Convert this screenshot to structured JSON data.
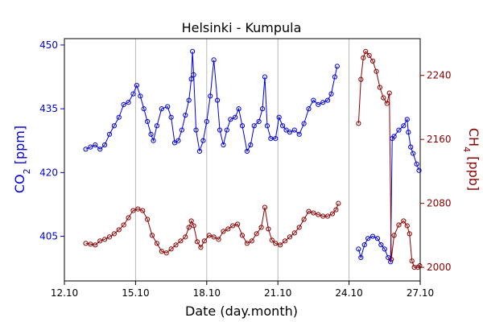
{
  "chart_data": {
    "type": "line",
    "title": "Helsinki - Kumpula",
    "xlabel": "Date (day.month)",
    "xlim": [
      12.1,
      27.1
    ],
    "x_ticks": [
      12.1,
      15.1,
      18.1,
      21.1,
      24.1,
      27.1
    ],
    "x_tick_labels": [
      "12.10",
      "15.10",
      "18.10",
      "21.10",
      "24.10",
      "27.10"
    ],
    "vlines": [
      15.1,
      18.1,
      21.1,
      24.1
    ],
    "axes": {
      "left": {
        "ylabel_main": "CO",
        "ylabel_sub": "2",
        "ylabel_unit": " [ppm]",
        "color": "#0000dd",
        "ylim": [
          394.5,
          451.5
        ],
        "ticks": [
          405,
          420,
          435,
          450
        ],
        "tick_labels": [
          "405",
          "420",
          "435",
          "450"
        ]
      },
      "right": {
        "ylabel_main": "CH",
        "ylabel_sub": "4",
        "ylabel_unit": " [ppb]",
        "color": "#8b0000",
        "ylim": [
          1983,
          2286
        ],
        "ticks": [
          2000,
          2080,
          2160,
          2240
        ],
        "tick_labels": [
          "2000",
          "2080",
          "2160",
          "2240"
        ]
      }
    },
    "series": [
      {
        "name": "CO2",
        "axis": "left",
        "color": "#0000dd",
        "segments": [
          [
            [
              13.0,
              425.5
            ],
            [
              13.2,
              426.0
            ],
            [
              13.4,
              426.5
            ],
            [
              13.6,
              425.5
            ],
            [
              13.8,
              426.5
            ],
            [
              14.0,
              429.0
            ],
            [
              14.2,
              431.0
            ],
            [
              14.4,
              433.0
            ],
            [
              14.6,
              436.0
            ],
            [
              14.8,
              436.5
            ],
            [
              15.0,
              438.5
            ],
            [
              15.15,
              440.5
            ],
            [
              15.3,
              438.0
            ],
            [
              15.45,
              435.0
            ],
            [
              15.6,
              432.0
            ],
            [
              15.75,
              429.0
            ],
            [
              15.85,
              427.5
            ],
            [
              16.0,
              431.0
            ],
            [
              16.2,
              435.0
            ],
            [
              16.45,
              435.5
            ],
            [
              16.6,
              433.0
            ],
            [
              16.75,
              427.0
            ],
            [
              16.9,
              427.5
            ],
            [
              17.05,
              430.0
            ],
            [
              17.2,
              433.5
            ],
            [
              17.35,
              437.0
            ],
            [
              17.45,
              442.0
            ],
            [
              17.5,
              448.5
            ],
            [
              17.55,
              443.0
            ],
            [
              17.65,
              430.0
            ],
            [
              17.8,
              425.0
            ],
            [
              17.95,
              427.5
            ],
            [
              18.1,
              432.0
            ],
            [
              18.25,
              438.0
            ],
            [
              18.4,
              446.5
            ],
            [
              18.55,
              437.0
            ],
            [
              18.65,
              430.0
            ],
            [
              18.8,
              426.5
            ],
            [
              18.95,
              430.0
            ],
            [
              19.1,
              432.5
            ],
            [
              19.3,
              433.0
            ],
            [
              19.45,
              435.0
            ],
            [
              19.6,
              431.0
            ],
            [
              19.8,
              425.0
            ],
            [
              19.95,
              426.5
            ],
            [
              20.1,
              431.0
            ],
            [
              20.3,
              432.0
            ],
            [
              20.45,
              435.0
            ],
            [
              20.55,
              442.5
            ],
            [
              20.65,
              431.0
            ],
            [
              20.8,
              428.0
            ],
            [
              21.0,
              428.0
            ],
            [
              21.15,
              433.0
            ],
            [
              21.3,
              431.0
            ],
            [
              21.45,
              430.0
            ],
            [
              21.6,
              429.5
            ],
            [
              21.8,
              430.0
            ],
            [
              22.0,
              429.0
            ],
            [
              22.2,
              431.5
            ],
            [
              22.4,
              435.0
            ],
            [
              22.6,
              437.0
            ],
            [
              22.8,
              436.0
            ],
            [
              23.0,
              436.5
            ],
            [
              23.2,
              437.0
            ],
            [
              23.35,
              438.5
            ],
            [
              23.5,
              442.5
            ],
            [
              23.6,
              445.0
            ]
          ],
          [
            [
              24.5,
              402.0
            ],
            [
              24.6,
              400.0
            ],
            [
              24.75,
              403.0
            ],
            [
              24.9,
              404.5
            ],
            [
              25.1,
              405.0
            ],
            [
              25.3,
              404.5
            ],
            [
              25.45,
              403.0
            ],
            [
              25.6,
              402.0
            ],
            [
              25.75,
              400.0
            ],
            [
              25.85,
              399.0
            ],
            [
              25.92,
              428.0
            ],
            [
              26.0,
              428.5
            ],
            [
              26.2,
              430.0
            ],
            [
              26.4,
              431.0
            ],
            [
              26.55,
              432.5
            ],
            [
              26.6,
              429.5
            ],
            [
              26.7,
              426.0
            ],
            [
              26.8,
              424.5
            ],
            [
              26.95,
              422.0
            ],
            [
              27.05,
              420.5
            ]
          ]
        ]
      },
      {
        "name": "CH4",
        "axis": "right",
        "color": "#8b0000",
        "segments": [
          [
            [
              13.0,
              2030
            ],
            [
              13.2,
              2029
            ],
            [
              13.4,
              2028
            ],
            [
              13.6,
              2033
            ],
            [
              13.8,
              2035
            ],
            [
              14.0,
              2038
            ],
            [
              14.2,
              2042
            ],
            [
              14.4,
              2047
            ],
            [
              14.6,
              2053
            ],
            [
              14.8,
              2062
            ],
            [
              15.0,
              2071
            ],
            [
              15.2,
              2073
            ],
            [
              15.4,
              2071
            ],
            [
              15.6,
              2060
            ],
            [
              15.8,
              2040
            ],
            [
              16.0,
              2030
            ],
            [
              16.2,
              2020
            ],
            [
              16.4,
              2018
            ],
            [
              16.6,
              2023
            ],
            [
              16.8,
              2028
            ],
            [
              17.0,
              2033
            ],
            [
              17.2,
              2038
            ],
            [
              17.35,
              2050
            ],
            [
              17.45,
              2058
            ],
            [
              17.55,
              2052
            ],
            [
              17.7,
              2032
            ],
            [
              17.85,
              2025
            ],
            [
              18.0,
              2033
            ],
            [
              18.2,
              2040
            ],
            [
              18.4,
              2038
            ],
            [
              18.6,
              2035
            ],
            [
              18.8,
              2045
            ],
            [
              19.0,
              2048
            ],
            [
              19.2,
              2052
            ],
            [
              19.4,
              2054
            ],
            [
              19.6,
              2040
            ],
            [
              19.8,
              2030
            ],
            [
              20.0,
              2033
            ],
            [
              20.2,
              2042
            ],
            [
              20.4,
              2050
            ],
            [
              20.55,
              2075
            ],
            [
              20.7,
              2048
            ],
            [
              20.85,
              2034
            ],
            [
              21.0,
              2030
            ],
            [
              21.2,
              2028
            ],
            [
              21.4,
              2033
            ],
            [
              21.6,
              2038
            ],
            [
              21.8,
              2043
            ],
            [
              22.0,
              2050
            ],
            [
              22.2,
              2060
            ],
            [
              22.4,
              2070
            ],
            [
              22.6,
              2068
            ],
            [
              22.8,
              2066
            ],
            [
              23.0,
              2064
            ],
            [
              23.2,
              2064
            ],
            [
              23.4,
              2067
            ],
            [
              23.55,
              2072
            ],
            [
              23.65,
              2080
            ]
          ],
          [
            [
              24.5,
              2180
            ],
            [
              24.6,
              2235
            ],
            [
              24.7,
              2262
            ],
            [
              24.8,
              2270
            ],
            [
              24.95,
              2265
            ],
            [
              25.1,
              2258
            ],
            [
              25.25,
              2245
            ],
            [
              25.4,
              2225
            ],
            [
              25.55,
              2212
            ],
            [
              25.7,
              2205
            ],
            [
              25.8,
              2218
            ],
            [
              25.88,
              2010
            ],
            [
              26.0,
              2040
            ],
            [
              26.2,
              2053
            ],
            [
              26.4,
              2058
            ],
            [
              26.55,
              2052
            ],
            [
              26.65,
              2042
            ],
            [
              26.75,
              2008
            ],
            [
              26.85,
              2000
            ],
            [
              27.0,
              2000
            ],
            [
              27.08,
              2002
            ]
          ]
        ]
      }
    ]
  }
}
